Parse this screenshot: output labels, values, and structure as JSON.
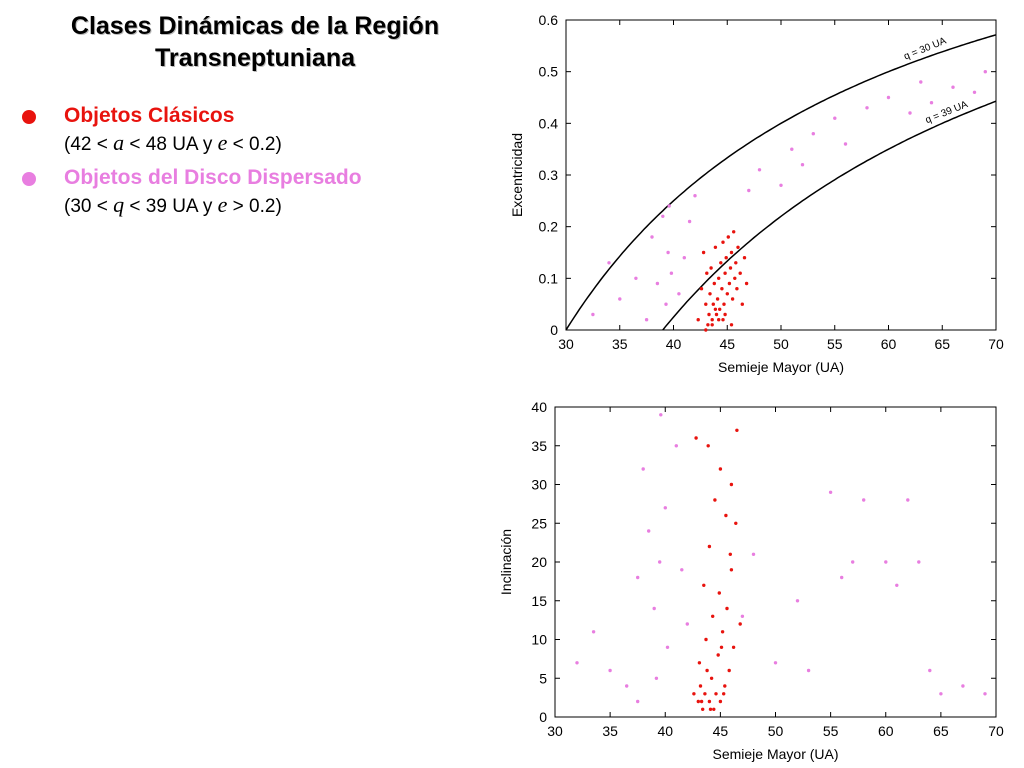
{
  "title": "Clases Dinámicas de la Región Transneptuniana",
  "classes": [
    {
      "name": "Objetos Clásicos",
      "color": "#e8130e",
      "crit": {
        "p1": "(42 < ",
        "v1": "a",
        "p2": " < 48 UA y ",
        "v2": "e",
        "p3": " < 0.2)"
      }
    },
    {
      "name": "Objetos del Disco Dispersado",
      "color": "#e87ee0",
      "crit": {
        "p1": "(30 < ",
        "v1": "q",
        "p2": " < 39 UA y ",
        "v2": "e",
        "p3": " > 0.2)"
      }
    }
  ],
  "chart_data": [
    {
      "type": "scatter",
      "title": "",
      "xlabel": "Semieje Mayor (UA)",
      "ylabel": "Excentricidad",
      "xlim": [
        30,
        70
      ],
      "ylim": [
        0,
        0.6
      ],
      "xticks": [
        "30",
        "35",
        "40",
        "45",
        "50",
        "55",
        "60",
        "65",
        "70"
      ],
      "yticks": [
        "0",
        "0.1",
        "0.2",
        "0.3",
        "0.4",
        "0.5",
        "0.6"
      ],
      "grid": false,
      "curves": [
        {
          "label": "q = 30 UA",
          "q": 30
        },
        {
          "label": "q = 39 UA",
          "q": 39
        }
      ],
      "series": [
        {
          "color": "#e8130e",
          "points": [
            [
              42.3,
              0.02
            ],
            [
              42.6,
              0.08
            ],
            [
              42.8,
              0.15
            ],
            [
              43.0,
              0.05
            ],
            [
              43.1,
              0.11
            ],
            [
              43.2,
              0.01
            ],
            [
              43.3,
              0.03
            ],
            [
              43.4,
              0.07
            ],
            [
              43.5,
              0.12
            ],
            [
              43.6,
              0.02
            ],
            [
              43.7,
              0.05
            ],
            [
              43.8,
              0.09
            ],
            [
              43.9,
              0.16
            ],
            [
              44.0,
              0.03
            ],
            [
              44.1,
              0.06
            ],
            [
              44.2,
              0.1
            ],
            [
              44.3,
              0.04
            ],
            [
              44.4,
              0.13
            ],
            [
              44.5,
              0.08
            ],
            [
              44.6,
              0.17
            ],
            [
              44.7,
              0.05
            ],
            [
              44.8,
              0.11
            ],
            [
              44.9,
              0.14
            ],
            [
              45.0,
              0.07
            ],
            [
              45.1,
              0.18
            ],
            [
              45.2,
              0.09
            ],
            [
              45.3,
              0.12
            ],
            [
              45.4,
              0.15
            ],
            [
              45.5,
              0.06
            ],
            [
              45.6,
              0.19
            ],
            [
              45.7,
              0.1
            ],
            [
              45.8,
              0.13
            ],
            [
              45.9,
              0.08
            ],
            [
              46.0,
              0.16
            ],
            [
              46.2,
              0.11
            ],
            [
              46.4,
              0.05
            ],
            [
              46.6,
              0.14
            ],
            [
              46.8,
              0.09
            ],
            [
              43.0,
              0.0
            ],
            [
              43.6,
              0.01
            ],
            [
              44.2,
              0.02
            ],
            [
              44.8,
              0.03
            ],
            [
              45.4,
              0.01
            ],
            [
              43.9,
              0.04
            ],
            [
              44.6,
              0.02
            ]
          ]
        },
        {
          "color": "#e87ee0",
          "points": [
            [
              32.5,
              0.03
            ],
            [
              34.0,
              0.13
            ],
            [
              35.0,
              0.06
            ],
            [
              36.5,
              0.1
            ],
            [
              37.5,
              0.02
            ],
            [
              38.0,
              0.18
            ],
            [
              38.5,
              0.09
            ],
            [
              39.0,
              0.22
            ],
            [
              39.3,
              0.05
            ],
            [
              39.5,
              0.15
            ],
            [
              39.6,
              0.24
            ],
            [
              39.8,
              0.11
            ],
            [
              40.5,
              0.07
            ],
            [
              41.0,
              0.14
            ],
            [
              41.5,
              0.21
            ],
            [
              42.0,
              0.26
            ],
            [
              47.0,
              0.27
            ],
            [
              48.0,
              0.31
            ],
            [
              50.0,
              0.28
            ],
            [
              51.0,
              0.35
            ],
            [
              52.0,
              0.32
            ],
            [
              53.0,
              0.38
            ],
            [
              55.0,
              0.41
            ],
            [
              56.0,
              0.36
            ],
            [
              58.0,
              0.43
            ],
            [
              60.0,
              0.45
            ],
            [
              62.0,
              0.42
            ],
            [
              63.0,
              0.48
            ],
            [
              64.0,
              0.44
            ],
            [
              66.0,
              0.47
            ],
            [
              68.0,
              0.46
            ],
            [
              69.0,
              0.5
            ]
          ]
        }
      ]
    },
    {
      "type": "scatter",
      "title": "",
      "xlabel": "Semieje Mayor (UA)",
      "ylabel": "Inclinación",
      "xlim": [
        30,
        70
      ],
      "ylim": [
        0,
        40
      ],
      "xticks": [
        "30",
        "35",
        "40",
        "45",
        "50",
        "55",
        "60",
        "65",
        "70"
      ],
      "yticks": [
        "0",
        "5",
        "10",
        "15",
        "20",
        "25",
        "30",
        "35",
        "40"
      ],
      "grid": false,
      "series": [
        {
          "color": "#e8130e",
          "points": [
            [
              43.0,
              2
            ],
            [
              43.2,
              4
            ],
            [
              43.4,
              1
            ],
            [
              43.6,
              3
            ],
            [
              43.8,
              6
            ],
            [
              44.0,
              2
            ],
            [
              44.2,
              5
            ],
            [
              44.4,
              1
            ],
            [
              44.6,
              3
            ],
            [
              44.8,
              8
            ],
            [
              45.0,
              2
            ],
            [
              45.2,
              11
            ],
            [
              45.4,
              4
            ],
            [
              45.6,
              14
            ],
            [
              45.8,
              6
            ],
            [
              46.0,
              19
            ],
            [
              46.2,
              9
            ],
            [
              46.4,
              25
            ],
            [
              43.5,
              17
            ],
            [
              44.0,
              22
            ],
            [
              44.5,
              28
            ],
            [
              45.0,
              32
            ],
            [
              45.5,
              26
            ],
            [
              46.0,
              30
            ],
            [
              43.9,
              35
            ],
            [
              46.5,
              37
            ],
            [
              42.8,
              36
            ],
            [
              44.3,
              13
            ],
            [
              45.1,
              9
            ],
            [
              42.6,
              3
            ],
            [
              43.1,
              7
            ],
            [
              43.7,
              10
            ],
            [
              44.9,
              16
            ],
            [
              45.9,
              21
            ],
            [
              46.8,
              12
            ],
            [
              44.1,
              1
            ],
            [
              43.3,
              2
            ],
            [
              45.3,
              3
            ]
          ]
        },
        {
          "color": "#e87ee0",
          "points": [
            [
              32.0,
              7
            ],
            [
              33.5,
              11
            ],
            [
              35.0,
              6
            ],
            [
              36.5,
              4
            ],
            [
              37.5,
              2
            ],
            [
              37.5,
              18
            ],
            [
              38.0,
              32
            ],
            [
              38.5,
              24
            ],
            [
              39.0,
              14
            ],
            [
              39.2,
              5
            ],
            [
              39.5,
              20
            ],
            [
              39.6,
              39
            ],
            [
              40.0,
              27
            ],
            [
              40.2,
              9
            ],
            [
              41.0,
              35
            ],
            [
              41.5,
              19
            ],
            [
              42.0,
              12
            ],
            [
              47.0,
              13
            ],
            [
              48.0,
              21
            ],
            [
              50.0,
              7
            ],
            [
              52.0,
              15
            ],
            [
              53.0,
              6
            ],
            [
              55.0,
              29
            ],
            [
              56.0,
              18
            ],
            [
              57.0,
              20
            ],
            [
              58.0,
              28
            ],
            [
              60.0,
              20
            ],
            [
              61.0,
              17
            ],
            [
              62.0,
              28
            ],
            [
              63.0,
              20
            ],
            [
              64.0,
              6
            ],
            [
              65.0,
              3
            ],
            [
              67.0,
              4
            ],
            [
              69.0,
              3
            ]
          ]
        }
      ]
    }
  ]
}
